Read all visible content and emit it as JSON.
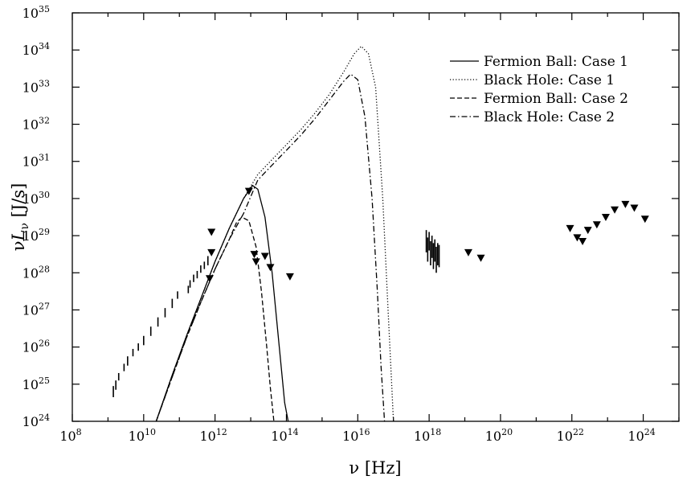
{
  "chart_data": {
    "type": "line",
    "title": "",
    "xlabel": "ν [Hz]",
    "ylabel": "νL_ν [J/s]",
    "xscale": "log",
    "yscale": "log",
    "xlim": [
      100000000.0,
      1e+25
    ],
    "ylim": [
      1e+24,
      1e+35
    ],
    "x_tick_labels": [
      {
        "base": "10",
        "exp": "8",
        "value": 100000000.0
      },
      {
        "base": "10",
        "exp": "10",
        "value": 10000000000.0
      },
      {
        "base": "10",
        "exp": "12",
        "value": 1000000000000.0
      },
      {
        "base": "10",
        "exp": "14",
        "value": 100000000000000.0
      },
      {
        "base": "10",
        "exp": "16",
        "value": 1e+16
      },
      {
        "base": "10",
        "exp": "18",
        "value": 1e+18
      },
      {
        "base": "10",
        "exp": "20",
        "value": 1e+20
      },
      {
        "base": "10",
        "exp": "22",
        "value": 1e+22
      },
      {
        "base": "10",
        "exp": "24",
        "value": 1e+24
      }
    ],
    "y_tick_labels": [
      {
        "base": "10",
        "exp": "24",
        "value": 1e+24
      },
      {
        "base": "10",
        "exp": "25",
        "value": 1e+25
      },
      {
        "base": "10",
        "exp": "26",
        "value": 1e+26
      },
      {
        "base": "10",
        "exp": "27",
        "value": 1e+27
      },
      {
        "base": "10",
        "exp": "28",
        "value": 1e+28
      },
      {
        "base": "10",
        "exp": "29",
        "value": 1e+29
      },
      {
        "base": "10",
        "exp": "30",
        "value": 1e+30
      },
      {
        "base": "10",
        "exp": "31",
        "value": 1e+31
      },
      {
        "base": "10",
        "exp": "32",
        "value": 1e+32
      },
      {
        "base": "10",
        "exp": "33",
        "value": 1e+33
      },
      {
        "base": "10",
        "exp": "34",
        "value": 1e+34
      },
      {
        "base": "10",
        "exp": "35",
        "value": 1e+35
      }
    ],
    "legend": {
      "position": "top-right"
    },
    "series": [
      {
        "name": "Fermion Ball: Case 1",
        "style": "solid",
        "log10_x": [
          10.35,
          10.8,
          11.2,
          11.6,
          12.0,
          12.4,
          12.8,
          13.05,
          13.2,
          13.4,
          13.6,
          13.8,
          13.95,
          14.05
        ],
        "log10_y": [
          24.0,
          25.25,
          26.3,
          27.3,
          28.3,
          29.2,
          30.0,
          30.35,
          30.25,
          29.5,
          28.0,
          26.0,
          24.5,
          24.0
        ]
      },
      {
        "name": "Black Hole: Case 1",
        "style": "dotted",
        "log10_x": [
          10.35,
          10.8,
          11.2,
          11.6,
          12.0,
          12.4,
          12.8,
          13.2,
          13.6,
          14.0,
          14.4,
          14.8,
          15.2,
          15.6,
          15.9,
          16.1,
          16.3,
          16.5,
          16.7,
          16.85,
          16.95,
          17.0
        ],
        "log10_y": [
          24.0,
          25.25,
          26.3,
          27.3,
          28.3,
          29.2,
          30.0,
          30.65,
          31.05,
          31.45,
          31.85,
          32.3,
          32.8,
          33.4,
          33.9,
          34.1,
          33.9,
          33.0,
          30.0,
          27.0,
          25.0,
          24.0
        ]
      },
      {
        "name": "Fermion Ball: Case 2",
        "style": "dashed",
        "log10_x": [
          10.35,
          10.8,
          11.2,
          11.6,
          12.0,
          12.4,
          12.6,
          12.75,
          12.95,
          13.15,
          13.3,
          13.45,
          13.55,
          13.65
        ],
        "log10_y": [
          24.0,
          25.2,
          26.25,
          27.2,
          28.1,
          28.9,
          29.35,
          29.5,
          29.4,
          28.7,
          27.5,
          26.0,
          24.9,
          24.0
        ]
      },
      {
        "name": "Black Hole: Case 2",
        "style": "dashdot",
        "log10_x": [
          10.35,
          10.8,
          11.2,
          11.6,
          12.0,
          12.4,
          12.8,
          13.2,
          13.6,
          14.0,
          14.4,
          14.8,
          15.2,
          15.6,
          15.8,
          16.0,
          16.2,
          16.4,
          16.55,
          16.65,
          16.75
        ],
        "log10_y": [
          24.0,
          25.2,
          26.25,
          27.2,
          28.1,
          28.9,
          29.6,
          30.5,
          30.9,
          31.3,
          31.7,
          32.15,
          32.65,
          33.15,
          33.35,
          33.2,
          32.2,
          30.0,
          27.5,
          25.5,
          24.0
        ]
      }
    ],
    "upper_limits": {
      "marker": "triangle-down",
      "log10_x": [
        11.9,
        11.9,
        11.85,
        12.95,
        13.1,
        13.15,
        13.4,
        13.55,
        14.1,
        19.1,
        19.45,
        21.95,
        22.15,
        22.3,
        22.45,
        22.7,
        22.95,
        23.2,
        23.5,
        23.75,
        24.05
      ],
      "log10_y": [
        29.1,
        28.55,
        27.85,
        30.2,
        28.5,
        28.3,
        28.45,
        28.15,
        27.9,
        28.55,
        28.4,
        29.2,
        28.95,
        28.85,
        29.15,
        29.3,
        29.5,
        29.7,
        29.85,
        29.75,
        29.45
      ]
    },
    "data_bars": {
      "log10_x": [
        9.15,
        9.22,
        9.3,
        9.45,
        9.55,
        9.7,
        9.85,
        10.0,
        10.2,
        10.4,
        10.6,
        10.8,
        10.95,
        11.25,
        11.3,
        11.4,
        11.5,
        11.6,
        11.7,
        11.8,
        17.92,
        17.96,
        18.0,
        18.04,
        18.08,
        18.12,
        18.16,
        18.2,
        18.24,
        18.28
      ],
      "log10_y_low": [
        24.65,
        24.85,
        25.1,
        25.35,
        25.5,
        25.75,
        25.9,
        26.05,
        26.3,
        26.55,
        26.8,
        27.05,
        27.3,
        27.45,
        27.6,
        27.75,
        27.85,
        28.0,
        28.1,
        28.2,
        28.55,
        28.3,
        28.6,
        28.2,
        28.4,
        28.1,
        28.3,
        28.0,
        28.2,
        28.15
      ],
      "log10_y_high": [
        24.95,
        25.1,
        25.3,
        25.55,
        25.75,
        25.95,
        26.1,
        26.3,
        26.55,
        26.8,
        27.05,
        27.3,
        27.5,
        27.65,
        27.8,
        27.95,
        28.05,
        28.2,
        28.3,
        28.45,
        29.15,
        28.95,
        29.1,
        28.85,
        29.0,
        28.8,
        28.9,
        28.7,
        28.8,
        28.75
      ]
    }
  }
}
